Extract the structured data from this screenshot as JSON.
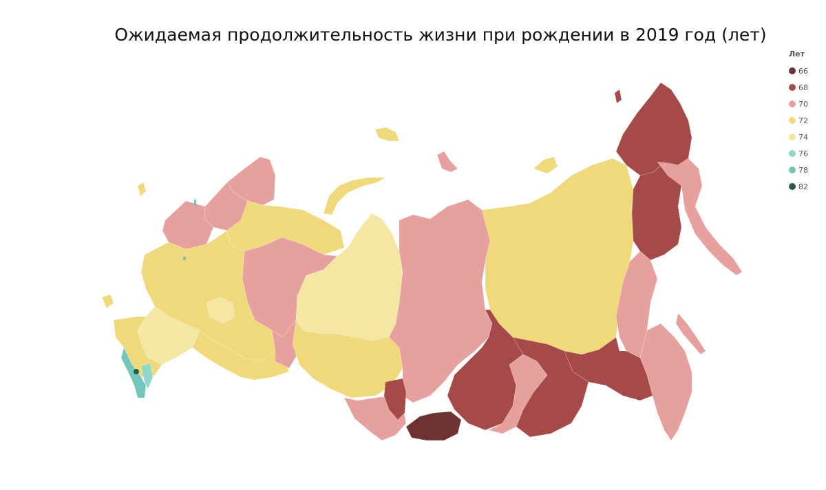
{
  "title": "Ожидаемая продолжительность жизни при рождении в 2019 год (лет)",
  "legend": {
    "title": "Лет",
    "items": [
      {
        "label": "66",
        "color": "#6e3233"
      },
      {
        "label": "68",
        "color": "#a54a48"
      },
      {
        "label": "70",
        "color": "#e6a09d"
      },
      {
        "label": "72",
        "color": "#efd97a"
      },
      {
        "label": "74",
        "color": "#f4e7a3"
      },
      {
        "label": "76",
        "color": "#8fd6cb"
      },
      {
        "label": "78",
        "color": "#73c6bb"
      },
      {
        "label": "82",
        "color": "#2d5a4a"
      }
    ]
  },
  "map": {
    "type": "choropleth",
    "subject": "Russian federal subjects"
  }
}
